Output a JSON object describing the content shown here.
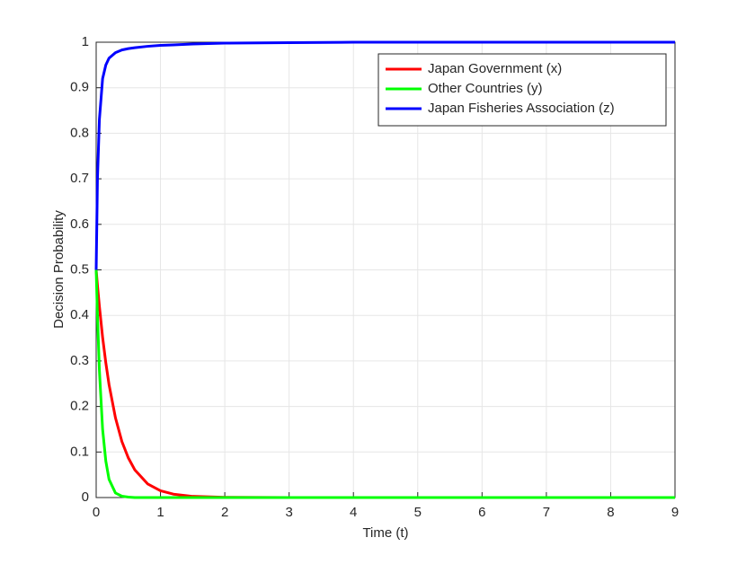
{
  "chart_data": {
    "type": "line",
    "xlabel": "Time (t)",
    "ylabel": "Decision Probability",
    "x": [
      0,
      0.02,
      0.05,
      0.1,
      0.15,
      0.2,
      0.3,
      0.4,
      0.5,
      0.6,
      0.8,
      1,
      1.2,
      1.5,
      2,
      3,
      4,
      5,
      6,
      7,
      8,
      9
    ],
    "series": [
      {
        "name": "Japan Government (x)",
        "color": "#ff0000",
        "values": [
          0.5,
          0.466,
          0.42,
          0.352,
          0.296,
          0.248,
          0.175,
          0.123,
          0.087,
          0.061,
          0.03,
          0.015,
          0.0075,
          0.0026,
          0.0005,
          0,
          0,
          0,
          0,
          0,
          0,
          0
        ]
      },
      {
        "name": "Other Countries (y)",
        "color": "#00ff00",
        "values": [
          0.5,
          0.4,
          0.28,
          0.15,
          0.08,
          0.04,
          0.01,
          0.003,
          0.001,
          0,
          0,
          0,
          0,
          0,
          0,
          0,
          0,
          0,
          0,
          0,
          0,
          0
        ]
      },
      {
        "name": "Japan Fisheries Association (z)",
        "color": "#0000ff",
        "values": [
          0.5,
          0.7,
          0.83,
          0.92,
          0.95,
          0.965,
          0.977,
          0.983,
          0.986,
          0.988,
          0.991,
          0.993,
          0.994,
          0.996,
          0.998,
          0.999,
          1,
          1,
          1,
          1,
          1,
          1
        ]
      }
    ],
    "xlim": [
      0,
      9
    ],
    "xticks": [
      0,
      1,
      2,
      3,
      4,
      5,
      6,
      7,
      8,
      9
    ],
    "ylim": [
      0,
      1
    ],
    "yticks": [
      0,
      0.1,
      0.2,
      0.3,
      0.4,
      0.5,
      0.6,
      0.7,
      0.8,
      0.9,
      1
    ],
    "grid": true,
    "legend": "northeast"
  }
}
